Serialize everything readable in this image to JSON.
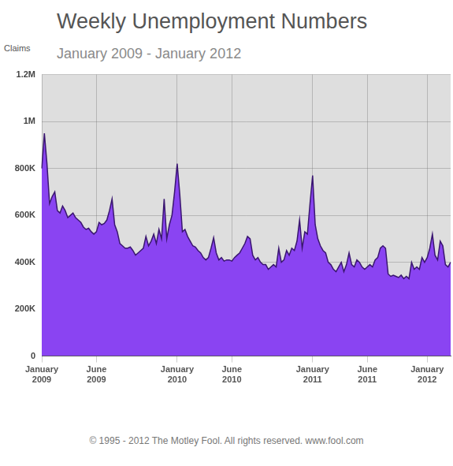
{
  "chart_data": {
    "type": "area",
    "title": "Weekly Unemployment Numbers",
    "subtitle": "January 2009 - January 2012",
    "y_label": "Claims",
    "footer": "© 1995 - 2012 The Motley Fool. All rights reserved. www.fool.com",
    "color": "#8a44f2",
    "grid": true,
    "ylim": [
      0,
      1200000
    ],
    "yticks": [
      0,
      {
        "value": 200000,
        "label": "200K"
      },
      {
        "value": 400000,
        "label": "400K"
      },
      {
        "value": 600000,
        "label": "600K"
      },
      {
        "value": 800000,
        "label": "800K"
      },
      {
        "value": 1000000,
        "label": "1M"
      },
      {
        "value": 1200000,
        "label": "1.2M"
      }
    ],
    "categories": [
      "January 2009",
      null,
      null,
      null,
      null,
      null,
      null,
      null,
      null,
      null,
      null,
      null,
      null,
      null,
      null,
      null,
      null,
      null,
      null,
      null,
      null,
      "June 2009",
      null,
      null,
      null,
      null,
      null,
      null,
      null,
      null,
      null,
      null,
      null,
      null,
      null,
      null,
      null,
      null,
      null,
      null,
      null,
      null,
      null,
      null,
      null,
      null,
      null,
      null,
      null,
      null,
      null,
      null,
      "January 2010",
      null,
      null,
      null,
      null,
      null,
      null,
      null,
      null,
      null,
      null,
      null,
      null,
      null,
      null,
      null,
      null,
      null,
      null,
      null,
      null,
      "June 2010",
      null,
      null,
      null,
      null,
      null,
      null,
      null,
      null,
      null,
      null,
      null,
      null,
      null,
      null,
      null,
      null,
      null,
      null,
      null,
      null,
      null,
      null,
      null,
      null,
      null,
      null,
      null,
      null,
      null,
      null,
      "January 2011",
      null,
      null,
      null,
      null,
      null,
      null,
      null,
      null,
      null,
      null,
      null,
      null,
      null,
      null,
      null,
      null,
      null,
      null,
      null,
      null,
      "June 2011",
      null,
      null,
      null,
      null,
      null,
      null,
      null,
      null,
      null,
      null,
      null,
      null,
      null,
      null,
      null,
      null,
      null,
      null,
      null,
      null,
      null,
      null,
      "January 2012",
      null,
      null,
      null,
      null,
      null,
      null,
      null,
      null,
      null
    ],
    "values": [
      800000,
      950000,
      820000,
      650000,
      680000,
      700000,
      620000,
      610000,
      640000,
      620000,
      590000,
      600000,
      610000,
      590000,
      580000,
      570000,
      550000,
      540000,
      545000,
      530000,
      520000,
      530000,
      570000,
      560000,
      565000,
      580000,
      620000,
      670000,
      560000,
      530000,
      480000,
      470000,
      460000,
      460000,
      465000,
      450000,
      430000,
      440000,
      450000,
      460000,
      510000,
      470000,
      490000,
      520000,
      480000,
      540000,
      500000,
      670000,
      500000,
      560000,
      600000,
      700000,
      820000,
      690000,
      530000,
      540000,
      510000,
      490000,
      470000,
      465000,
      450000,
      440000,
      420000,
      410000,
      420000,
      460000,
      505000,
      440000,
      410000,
      420000,
      405000,
      410000,
      410000,
      405000,
      420000,
      430000,
      440000,
      460000,
      480000,
      510000,
      500000,
      430000,
      410000,
      420000,
      400000,
      390000,
      390000,
      370000,
      380000,
      390000,
      380000,
      460000,
      400000,
      410000,
      450000,
      430000,
      460000,
      450000,
      490000,
      580000,
      460000,
      530000,
      520000,
      650000,
      770000,
      560000,
      500000,
      470000,
      450000,
      440000,
      400000,
      390000,
      370000,
      360000,
      380000,
      400000,
      360000,
      390000,
      440000,
      390000,
      380000,
      410000,
      400000,
      380000,
      370000,
      380000,
      390000,
      380000,
      410000,
      420000,
      460000,
      470000,
      460000,
      350000,
      340000,
      345000,
      340000,
      335000,
      345000,
      330000,
      340000,
      330000,
      400000,
      370000,
      380000,
      370000,
      420000,
      400000,
      420000,
      460000,
      520000,
      430000,
      410000,
      490000,
      470000,
      390000,
      380000,
      400000
    ]
  }
}
